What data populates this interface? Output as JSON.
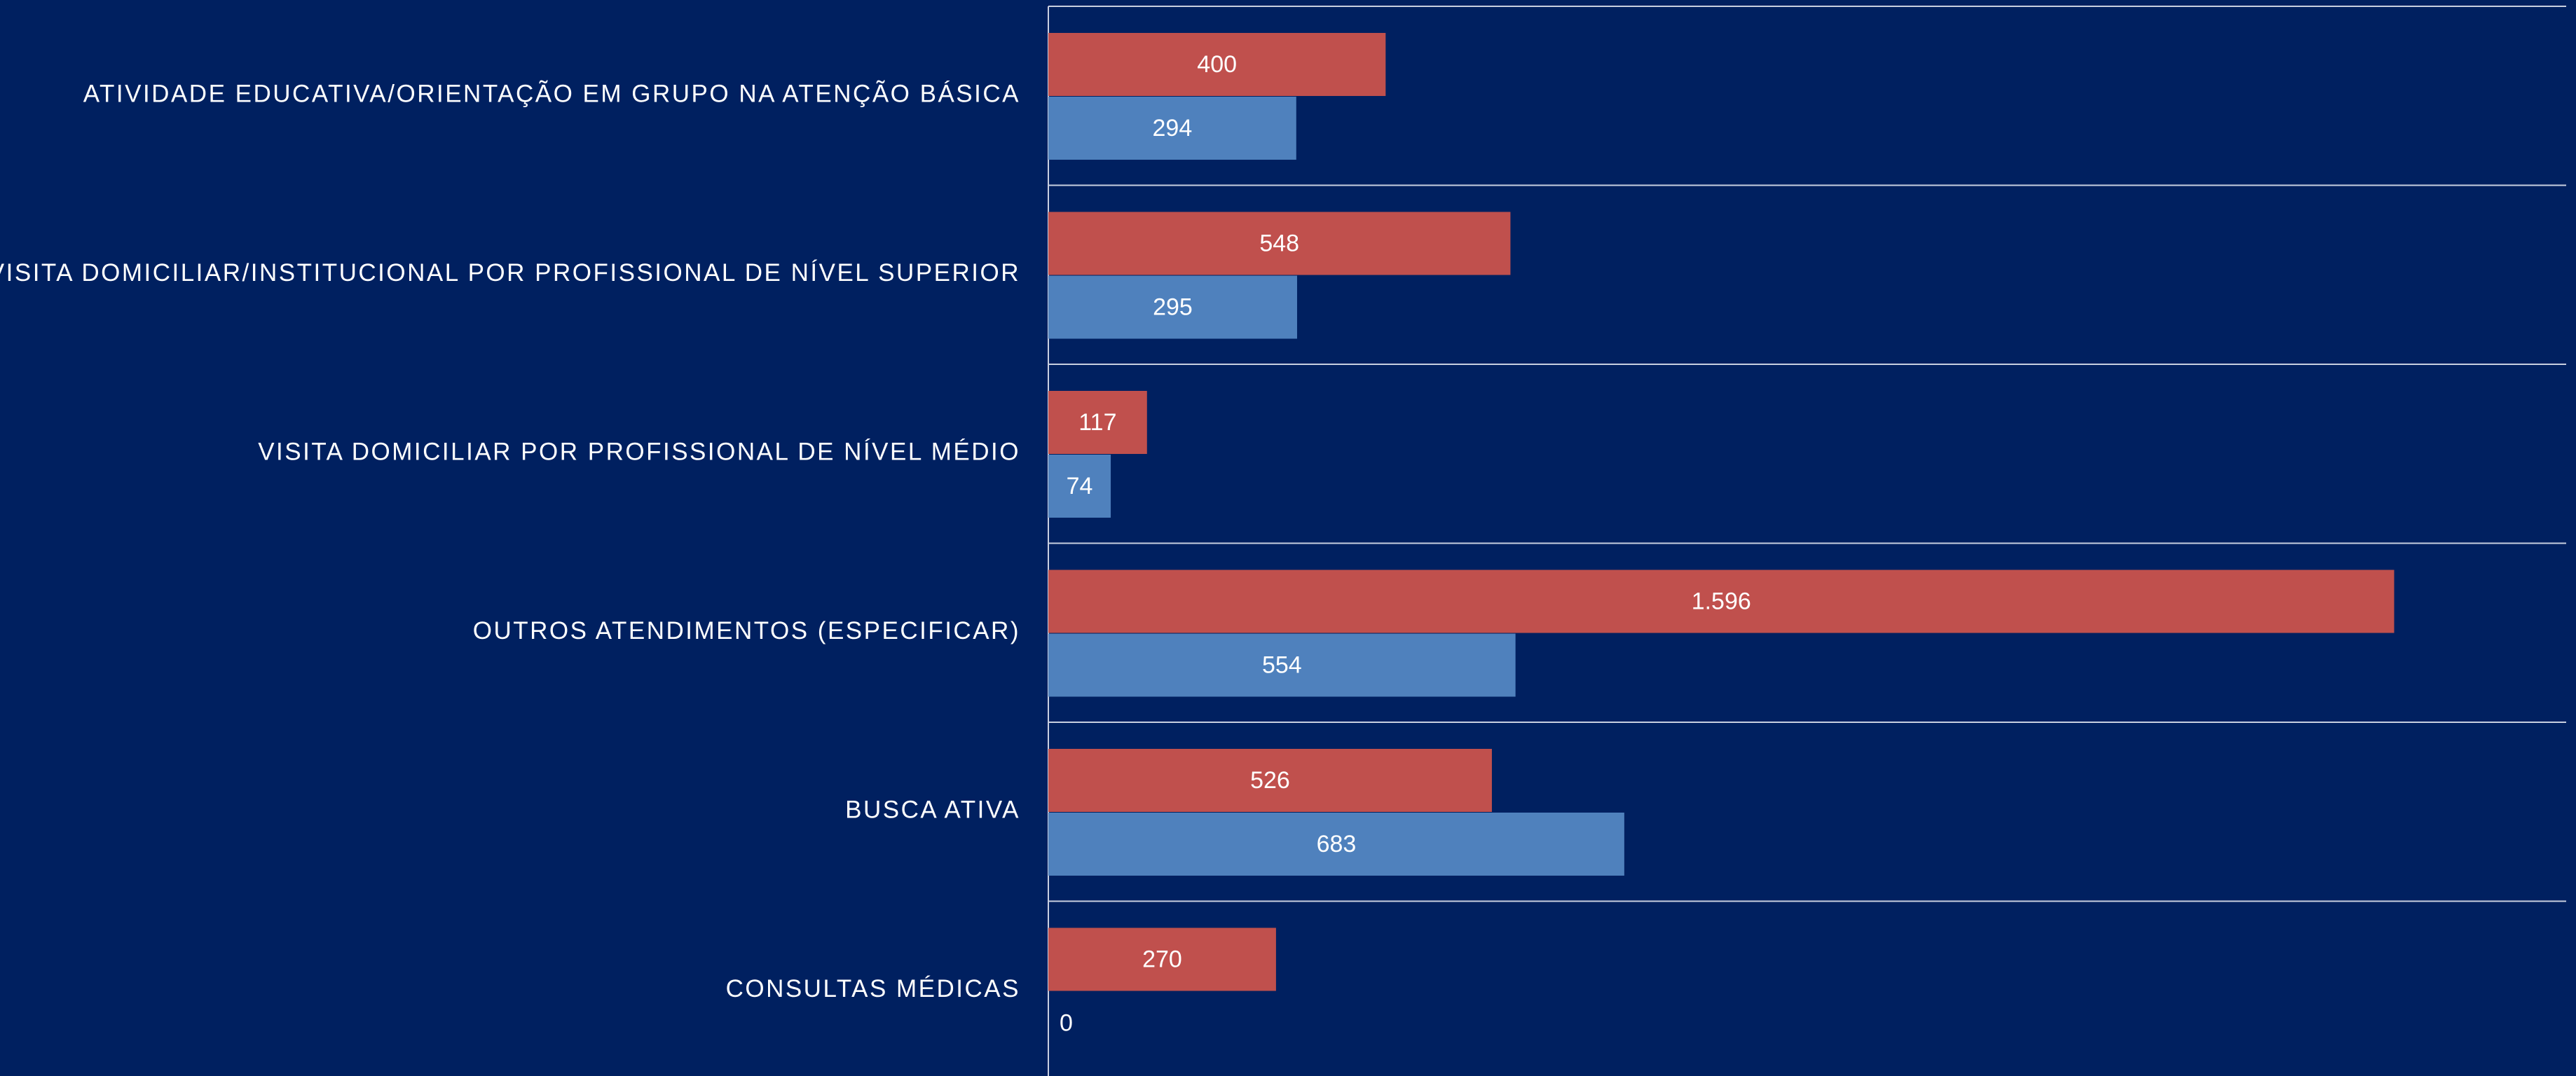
{
  "chart_data": {
    "type": "bar",
    "orientation": "horizontal",
    "categories": [
      "ATIVIDADE EDUCATIVA/ORIENTAÇÃO EM GRUPO NA ATENÇÃO BÁSICA",
      "VISITA DOMICILIAR/INSTITUCIONAL POR PROFISSIONAL DE NÍVEL SUPERIOR",
      "VISITA DOMICILIAR POR PROFISSIONAL DE NÍVEL MÉDIO",
      "OUTROS ATENDIMENTOS (ESPECIFICAR)",
      "BUSCA ATIVA",
      "CONSULTAS MÉDICAS"
    ],
    "series": [
      {
        "color": "#c0504d",
        "values": [
          400,
          548,
          117,
          1596,
          526,
          270
        ],
        "value_labels": [
          "400",
          "548",
          "117",
          "1.596",
          "526",
          "270"
        ]
      },
      {
        "color": "#4f81bd",
        "values": [
          294,
          295,
          74,
          554,
          683,
          0
        ],
        "value_labels": [
          "294",
          "295",
          "74",
          "554",
          "683",
          "0"
        ]
      }
    ],
    "xlim": [
      0,
      1800
    ],
    "grid": true
  }
}
